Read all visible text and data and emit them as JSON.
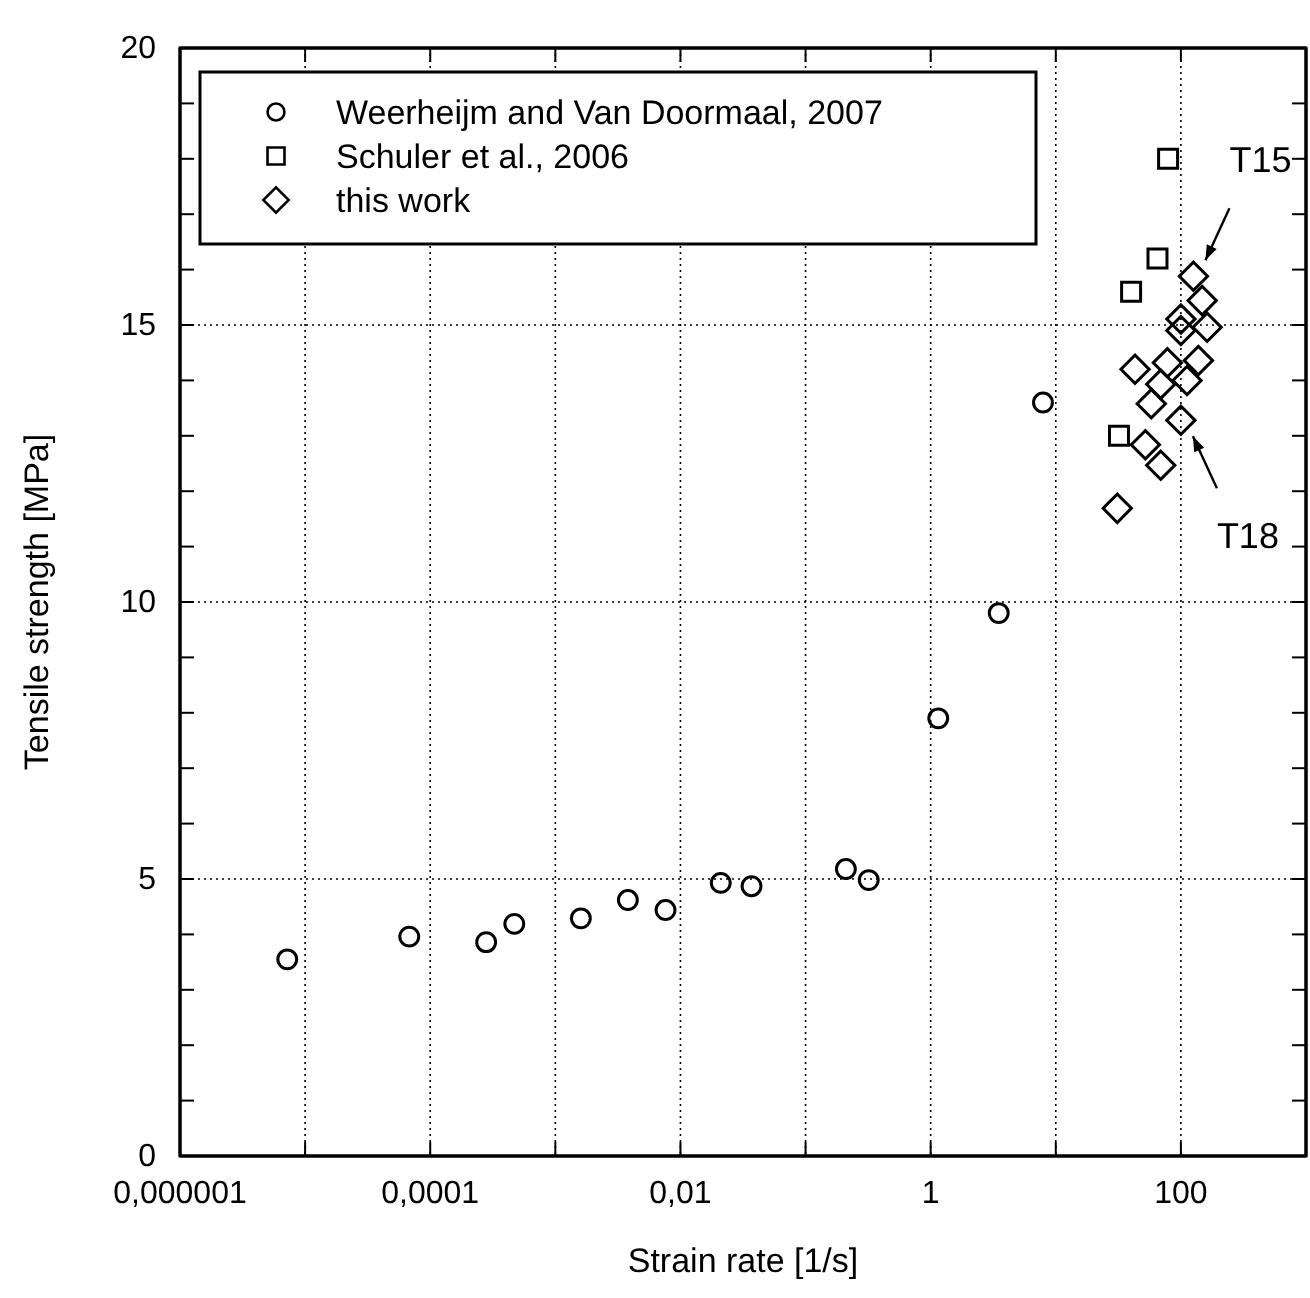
{
  "chart_data": {
    "type": "scatter",
    "xlabel": "Strain rate [1/s]",
    "ylabel": "Tensile strength [MPa]",
    "log": "x",
    "xlim": [
      1e-06,
      1000
    ],
    "xticks": [
      {
        "value": 1e-06,
        "label": "0,000001"
      },
      {
        "value": 1e-05,
        "label": null
      },
      {
        "value": 0.0001,
        "label": "0,0001"
      },
      {
        "value": 0.001,
        "label": null
      },
      {
        "value": 0.01,
        "label": "0,01"
      },
      {
        "value": 0.1,
        "label": null
      },
      {
        "value": 1,
        "label": "1"
      },
      {
        "value": 10,
        "label": null
      },
      {
        "value": 100,
        "label": "100"
      },
      {
        "value": 1000,
        "label": null
      }
    ],
    "ylim": [
      0,
      20
    ],
    "yticks": [
      0,
      {
        "value": 1,
        "label": null
      },
      {
        "value": 2,
        "label": null
      },
      {
        "value": 3,
        "label": null
      },
      {
        "value": 4,
        "label": null
      },
      5,
      {
        "value": 6,
        "label": null
      },
      {
        "value": 7,
        "label": null
      },
      {
        "value": 8,
        "label": null
      },
      {
        "value": 9,
        "label": null
      },
      10,
      {
        "value": 11,
        "label": null
      },
      {
        "value": 12,
        "label": null
      },
      {
        "value": 13,
        "label": null
      },
      {
        "value": 14,
        "label": null
      },
      15,
      {
        "value": 16,
        "label": null
      },
      {
        "value": 17,
        "label": null
      },
      {
        "value": 18,
        "label": null
      },
      {
        "value": 19,
        "label": null
      },
      20
    ],
    "grid": true,
    "legend": "top left",
    "series": [
      {
        "name": "Weerheijm and Van Doormaal, 2007",
        "color": "#000000",
        "marker": "circle",
        "x": [
          7.2e-06,
          6.8e-05,
          0.00028,
          0.00047,
          0.0016,
          0.0038,
          0.0076,
          0.021,
          0.037,
          0.21,
          0.32,
          1.15,
          3.5,
          7.9
        ],
        "values": [
          3.55,
          3.96,
          3.86,
          4.19,
          4.29,
          4.62,
          4.44,
          4.93,
          4.87,
          5.18,
          4.98,
          7.9,
          9.8,
          13.6
        ]
      },
      {
        "name": "Schuler et al., 2006",
        "color": "#000000",
        "marker": "square",
        "x": [
          79,
          65,
          40,
          32
        ],
        "values": [
          18.0,
          16.2,
          15.6,
          13.0
        ]
      },
      {
        "name": "this work",
        "color": "#000000",
        "marker": "diamond",
        "x": [
          126,
          148,
          100,
          100,
          162,
          138,
          78,
          43,
          112,
          69,
          58,
          100,
          52,
          69,
          31
        ],
        "values": [
          15.88,
          15.44,
          15.11,
          14.9,
          14.96,
          14.36,
          14.32,
          14.2,
          14.0,
          13.93,
          13.58,
          13.28,
          12.84,
          12.47,
          11.69
        ]
      }
    ],
    "annotations": [
      {
        "text": "T15",
        "x": 126,
        "y": 15.88
      },
      {
        "text": "T18",
        "x": 100,
        "y": 13.28
      }
    ]
  }
}
